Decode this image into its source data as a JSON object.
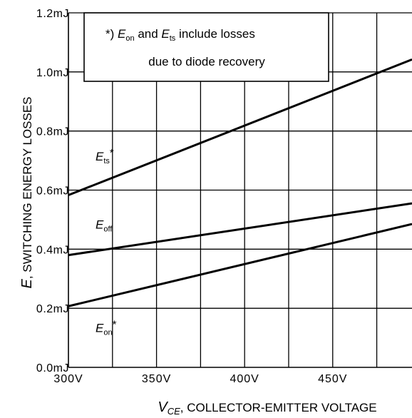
{
  "chart_data": {
    "type": "line",
    "title": "",
    "xlabel": {
      "var": "V",
      "sub": "CE",
      "text": ", COLLECTOR-EMITTER VOLTAGE"
    },
    "ylabel": {
      "var": "E",
      "text": ", SWITCHING ENERGY LOSSES"
    },
    "xlim": [
      300,
      495
    ],
    "ylim": [
      0,
      1.2
    ],
    "x_ticks": [
      300,
      325,
      350,
      375,
      400,
      425,
      450,
      475
    ],
    "x_tick_labels": [
      "300V",
      "",
      "350V",
      "",
      "400V",
      "",
      "450V",
      ""
    ],
    "y_ticks": [
      0,
      0.2,
      0.4,
      0.6,
      0.8,
      1.0,
      1.2
    ],
    "y_tick_labels": [
      "0.0mJ",
      "0.2mJ",
      "0.4mJ",
      "0.6mJ",
      "0.8mJ",
      "1.0mJ",
      "1.2mJ"
    ],
    "grid": true,
    "legend": "none",
    "line_color": "#000000",
    "series": [
      {
        "name": {
          "main": "E",
          "sub": "ts",
          "suffix": "*"
        },
        "x": [
          300,
          495
        ],
        "y": [
          0.583,
          1.042
        ]
      },
      {
        "name": {
          "main": "E",
          "sub": "off",
          "suffix": ""
        },
        "x": [
          300,
          495
        ],
        "y": [
          0.38,
          0.555
        ]
      },
      {
        "name": {
          "main": "E",
          "sub": "on",
          "suffix": "*"
        },
        "x": [
          300,
          495
        ],
        "y": [
          0.207,
          0.485
        ]
      }
    ],
    "annotation": {
      "line1": {
        "prefix": "*) ",
        "e1": "E",
        "s1": "on",
        "mid": " and ",
        "e2": "E",
        "s2": "ts",
        "suffix": " include losses"
      },
      "line2": "due to diode recovery"
    }
  }
}
